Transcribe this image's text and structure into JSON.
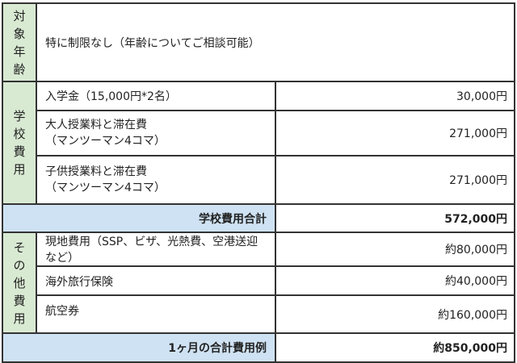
{
  "rows": {
    "age": {
      "category": "対象年齢",
      "text": "特に制限なし（年齢についてご相談可能）"
    },
    "school": {
      "category": "学校費用",
      "items": [
        {
          "label": "入学金（15,000円*2名）",
          "value": "30,000円"
        },
        {
          "label_line1": "大人授業料と滞在費",
          "label_line2": "（マンツーマン4コマ）",
          "value": "271,000円"
        },
        {
          "label_line1": "子供授業料と滞在費",
          "label_line2": "（マンツーマン4コマ）",
          "value": "271,000円"
        }
      ],
      "subtotal_label": "学校費用合計",
      "subtotal_value": "572,000円"
    },
    "other": {
      "category": "その他費用",
      "items": [
        {
          "label": "現地費用（SSP、ビザ、光熱費、空港送迎など）",
          "value": "約80,000円"
        },
        {
          "label": "海外旅行保険",
          "value": "約40,000円"
        },
        {
          "label": "航空券",
          "value": "約160,000円"
        }
      ]
    },
    "total": {
      "label": "1ヶ月の合計費用例",
      "value": "約850,000円"
    }
  },
  "colors": {
    "category_bg": "#d9ead3",
    "subtotal_bg": "#cfe2f3"
  }
}
